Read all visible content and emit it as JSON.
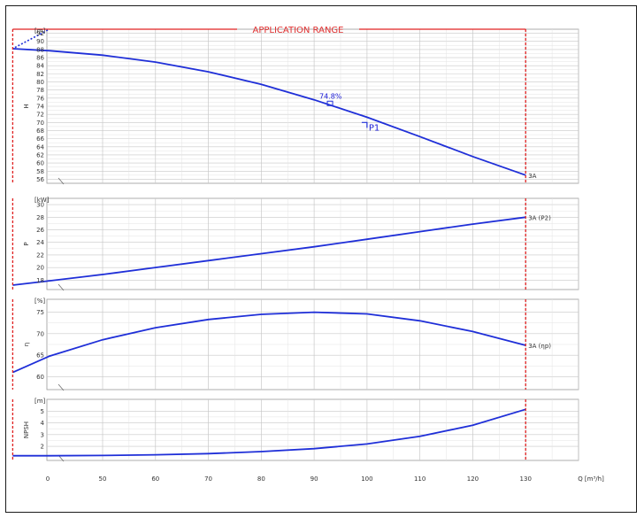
{
  "colors": {
    "curve": "#1f2fd8",
    "range": "#e02020",
    "grid": "#c8c8c8",
    "frame": "#222222"
  },
  "x_axis": {
    "ticks": [
      0,
      50,
      60,
      70,
      80,
      90,
      100,
      110,
      120,
      130
    ],
    "label": "Q [m³/h]"
  },
  "application_range": {
    "label": "APPLICATION RANGE",
    "q_min": 33,
    "q_max": 130
  },
  "chart_data": [
    {
      "id": "H",
      "type": "line",
      "ylabel": "H",
      "unit": "[m]",
      "ylim": [
        55,
        93
      ],
      "yticks": [
        56,
        58,
        60,
        62,
        64,
        66,
        68,
        70,
        72,
        74,
        76,
        78,
        80,
        82,
        84,
        86,
        88,
        90,
        92
      ],
      "series": [
        {
          "name": "3A",
          "x": [
            33,
            40,
            50,
            60,
            70,
            80,
            90,
            100,
            110,
            120,
            130
          ],
          "y": [
            88.2,
            87.7,
            86.6,
            84.9,
            82.5,
            79.4,
            75.6,
            71.3,
            66.5,
            61.6,
            57.0
          ]
        }
      ],
      "extrapolation": {
        "x": [
          30,
          33
        ],
        "y": [
          92.8,
          88.2
        ]
      },
      "annotations": [
        {
          "text": "74.8%",
          "x": 93,
          "y": 74.6,
          "kind": "bep"
        },
        {
          "text": "P1",
          "x": 100,
          "y": 70,
          "kind": "duty"
        }
      ]
    },
    {
      "id": "P",
      "type": "line",
      "ylabel": "P",
      "unit": "[kW]",
      "ylim": [
        16.5,
        31
      ],
      "yticks": [
        18,
        20,
        22,
        24,
        26,
        28,
        30
      ],
      "series": [
        {
          "name": "3A (P2)",
          "x": [
            33,
            40,
            50,
            60,
            70,
            80,
            90,
            100,
            110,
            120,
            130
          ],
          "y": [
            17.2,
            17.9,
            18.9,
            20.0,
            21.1,
            22.2,
            23.3,
            24.5,
            25.7,
            26.9,
            28.0
          ]
        }
      ]
    },
    {
      "id": "eta",
      "type": "line",
      "ylabel": "η",
      "unit": "[%]",
      "ylim": [
        57,
        78
      ],
      "yticks": [
        60,
        65,
        70,
        75
      ],
      "series": [
        {
          "name": "3A (ηp)",
          "x": [
            33,
            40,
            50,
            60,
            70,
            80,
            90,
            100,
            110,
            120,
            130
          ],
          "y": [
            61.0,
            64.8,
            68.6,
            71.4,
            73.3,
            74.5,
            75.0,
            74.6,
            73.0,
            70.5,
            67.3
          ]
        }
      ]
    },
    {
      "id": "NPSH",
      "type": "line",
      "ylabel": "NPSH",
      "unit": "[m]",
      "ylim": [
        0.8,
        6
      ],
      "yticks": [
        2,
        3,
        4,
        5
      ],
      "series": [
        {
          "name": "",
          "x": [
            33,
            40,
            50,
            60,
            70,
            80,
            90,
            100,
            110,
            120,
            130
          ],
          "y": [
            1.2,
            1.2,
            1.22,
            1.28,
            1.38,
            1.55,
            1.8,
            2.2,
            2.85,
            3.8,
            5.15
          ]
        }
      ]
    }
  ]
}
